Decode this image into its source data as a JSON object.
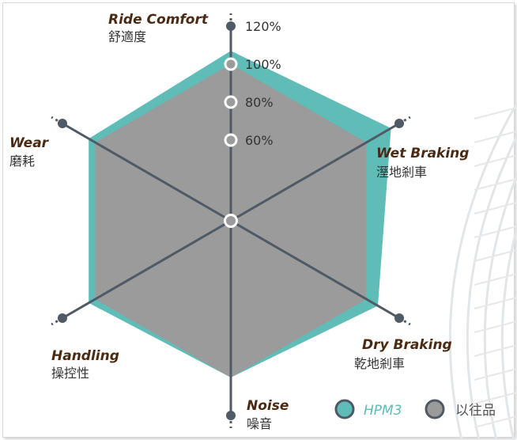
{
  "chart_data": {
    "type": "radar",
    "axes": [
      {
        "en": "Ride Comfort",
        "zh": "舒適度"
      },
      {
        "en": "Wet Braking",
        "zh": "溼地剎車"
      },
      {
        "en": "Dry Braking",
        "zh": "乾地剎車"
      },
      {
        "en": "Noise",
        "zh": "噪音"
      },
      {
        "en": "Handling",
        "zh": "操控性"
      },
      {
        "en": "Wear",
        "zh": "磨耗"
      }
    ],
    "ticks": [
      "60%",
      "80%",
      "100%",
      "120%"
    ],
    "tick_values": [
      60,
      80,
      100,
      120
    ],
    "range": [
      40,
      120
    ],
    "series": [
      {
        "name": "HPM3",
        "values": [
          107,
          115,
          107,
          100,
          104,
          104
        ]
      },
      {
        "name": "以往品",
        "values": [
          100,
          100,
          100,
          100,
          100,
          100
        ]
      }
    ]
  },
  "colors": {
    "hpm3": "#5fbcb7",
    "previous": "#9b9b9b",
    "axis": "#4f5a66",
    "marker_outline": "#ffffff"
  }
}
